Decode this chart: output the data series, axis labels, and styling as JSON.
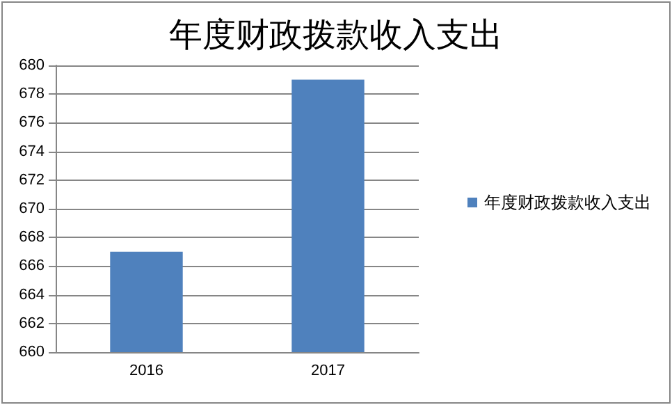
{
  "chart_data": {
    "type": "bar",
    "title": "年度财政拨款收入支出",
    "categories": [
      "2016",
      "2017"
    ],
    "series": [
      {
        "name": "年度财政拨款收入支出",
        "color": "#4f81bd",
        "values": [
          667,
          679
        ]
      }
    ],
    "ylim": [
      660,
      680
    ],
    "yticks": [
      660,
      662,
      664,
      666,
      668,
      670,
      672,
      674,
      676,
      678,
      680
    ],
    "grid": "y",
    "legend": "right"
  }
}
